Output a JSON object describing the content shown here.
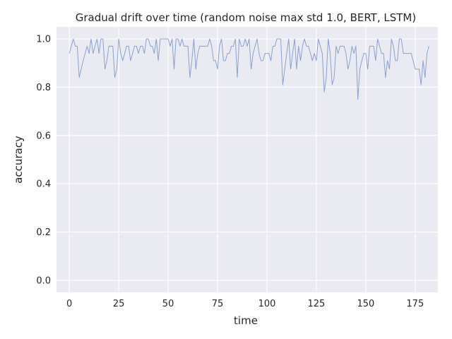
{
  "chart_data": {
    "type": "line",
    "title": "Gradual drift over time (random noise max std 1.0, BERT, LSTM)",
    "xlabel": "time",
    "ylabel": "accuracy",
    "xlim": [
      -6.5,
      186.5
    ],
    "ylim": [
      -0.05,
      1.05
    ],
    "xticks": [
      0,
      25,
      50,
      75,
      100,
      125,
      150,
      175
    ],
    "yticks": [
      0.0,
      0.2,
      0.4,
      0.6,
      0.8,
      1.0
    ],
    "grid": true,
    "legend": "none",
    "colors": {
      "background": "#eaeaf2",
      "grid": "#ffffff",
      "line": "#4c72b0"
    },
    "series": [
      {
        "values": [
          0.94,
          0.97,
          1.0,
          0.97,
          0.97,
          0.84,
          0.875,
          0.91,
          0.94,
          0.97,
          0.94,
          1.0,
          0.94,
          0.97,
          1.0,
          0.94,
          1.0,
          1.0,
          0.875,
          0.91,
          0.97,
          0.97,
          0.97,
          0.84,
          0.875,
          1.0,
          0.94,
          0.91,
          0.94,
          0.97,
          0.97,
          0.91,
          0.94,
          0.97,
          0.97,
          0.94,
          0.97,
          0.97,
          0.94,
          1.0,
          1.0,
          0.97,
          0.97,
          0.94,
          1.0,
          0.91,
          1.0,
          1.0,
          1.0,
          1.0,
          1.0,
          0.97,
          1.0,
          0.875,
          1.0,
          1.0,
          0.97,
          1.0,
          0.97,
          0.97,
          0.97,
          0.84,
          0.91,
          1.0,
          0.875,
          0.94,
          0.97,
          0.97,
          0.97,
          0.97,
          0.97,
          1.0,
          0.97,
          0.91,
          0.91,
          0.875,
          0.97,
          1.0,
          0.91,
          0.91,
          0.94,
          0.94,
          0.97,
          0.97,
          1.0,
          0.84,
          1.0,
          0.97,
          0.97,
          1.0,
          0.97,
          1.0,
          0.875,
          0.94,
          0.97,
          1.0,
          0.94,
          0.91,
          0.91,
          0.94,
          0.94,
          0.94,
          0.91,
          0.97,
          0.97,
          1.0,
          1.0,
          1.0,
          0.81,
          0.875,
          0.94,
          1.0,
          0.875,
          0.94,
          1.0,
          0.875,
          0.97,
          0.91,
          0.97,
          1.0,
          0.97,
          0.97,
          0.94,
          0.91,
          0.94,
          0.91,
          1.0,
          0.97,
          0.94,
          0.78,
          0.84,
          1.0,
          0.94,
          0.81,
          0.84,
          0.97,
          0.94,
          0.97,
          0.97,
          0.97,
          0.94,
          0.875,
          0.91,
          0.97,
          0.94,
          0.97,
          0.75,
          0.875,
          0.91,
          0.94,
          0.94,
          0.875,
          0.97,
          0.97,
          0.97,
          0.91,
          1.0,
          0.97,
          0.94,
          0.94,
          0.84,
          0.91,
          0.875,
          1.0,
          0.97,
          0.91,
          0.91,
          1.0,
          1.0,
          0.94,
          0.94,
          0.94,
          0.94,
          0.94,
          0.91,
          0.875,
          0.875,
          0.875,
          0.81,
          0.91,
          0.84,
          0.94,
          0.97
        ]
      }
    ]
  }
}
